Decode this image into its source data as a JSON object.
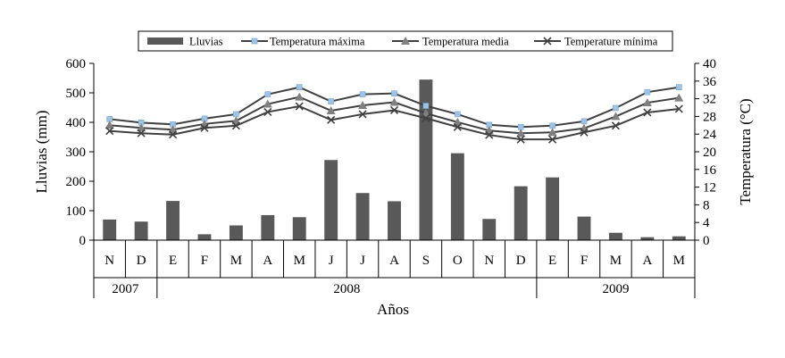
{
  "chart_data": {
    "type": "bar+line",
    "categories": [
      "N",
      "D",
      "E",
      "F",
      "M",
      "A",
      "M",
      "J",
      "J",
      "A",
      "S",
      "O",
      "N",
      "D",
      "E",
      "F",
      "M",
      "A",
      "M"
    ],
    "years": [
      {
        "label": "2007",
        "start": 0,
        "end": 1
      },
      {
        "label": "2008",
        "start": 2,
        "end": 13
      },
      {
        "label": "2009",
        "start": 14,
        "end": 18
      }
    ],
    "xlabel": "Años",
    "ylabel_left": "Lluvias (mm)",
    "ylabel_right": "Temperatura (°C)",
    "ylim_left": [
      0,
      600
    ],
    "yticks_left": [
      0,
      100,
      200,
      300,
      400,
      500,
      600
    ],
    "ylim_right": [
      0,
      40
    ],
    "yticks_right": [
      0,
      4,
      8,
      12,
      16,
      20,
      24,
      28,
      32,
      36,
      40
    ],
    "grid": false,
    "legend_position": "top",
    "series": [
      {
        "name": "Lluvias",
        "kind": "bar",
        "axis": "left",
        "color": "#595959",
        "values": [
          70,
          63,
          133,
          20,
          50,
          85,
          78,
          272,
          160,
          132,
          545,
          295,
          72,
          183,
          213,
          80,
          25,
          10,
          13
        ]
      },
      {
        "name": "Temperatura máxima",
        "kind": "line",
        "axis": "right",
        "color": "#404040",
        "marker": "square",
        "marker_color": "#9dc3e6",
        "values": [
          27.4,
          26.6,
          26.2,
          27.5,
          28.5,
          33.0,
          34.6,
          31.4,
          33.0,
          33.2,
          30.4,
          28.5,
          26.1,
          25.6,
          25.9,
          26.9,
          29.9,
          33.5,
          34.6
        ]
      },
      {
        "name": "Temperatura media",
        "kind": "line",
        "axis": "right",
        "color": "#404040",
        "marker": "triangle",
        "marker_color": "#808080",
        "values": [
          26.0,
          25.4,
          25.0,
          26.3,
          27.0,
          30.8,
          32.4,
          29.3,
          30.5,
          31.2,
          28.7,
          26.7,
          24.8,
          24.2,
          24.4,
          25.3,
          28.0,
          31.1,
          32.2
        ]
      },
      {
        "name": "Temperature mínima",
        "kind": "line",
        "axis": "right",
        "color": "#404040",
        "marker": "x",
        "marker_color": "#404040",
        "values": [
          24.7,
          24.2,
          23.9,
          25.4,
          25.9,
          29.0,
          30.3,
          27.2,
          28.5,
          29.4,
          27.6,
          25.6,
          23.8,
          22.8,
          22.8,
          24.4,
          25.9,
          28.9,
          29.7
        ]
      }
    ]
  }
}
